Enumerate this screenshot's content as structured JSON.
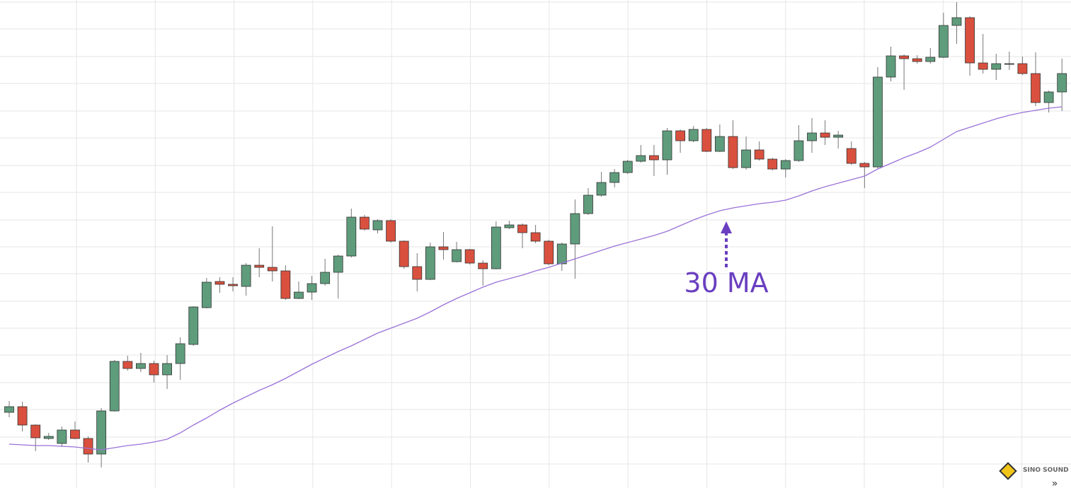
{
  "chart_data": {
    "type": "candlestick",
    "categories": [
      null,
      null,
      null,
      null,
      null,
      null,
      null,
      null,
      null,
      null,
      null,
      null,
      null,
      null,
      null,
      null,
      null,
      null,
      null,
      null,
      null,
      null,
      null,
      null,
      null,
      null,
      null,
      null,
      null,
      null,
      null,
      null,
      null,
      null,
      null,
      null,
      null,
      null,
      null,
      null,
      null,
      null,
      null,
      null,
      null,
      null,
      null,
      null,
      null,
      null,
      null,
      null,
      null,
      null,
      null,
      null,
      null,
      null,
      null,
      null,
      null,
      null,
      null,
      null,
      null,
      null,
      null,
      null,
      null,
      null,
      null,
      null,
      null,
      null,
      null,
      null,
      null,
      null,
      null,
      null,
      null
    ],
    "open": [
      107,
      115,
      89,
      70,
      63,
      82,
      70,
      48,
      109,
      179,
      169,
      176,
      160,
      176,
      203,
      255,
      292,
      288,
      285,
      315,
      312,
      307,
      268,
      277,
      289,
      305,
      328,
      383,
      365,
      378,
      349,
      313,
      295,
      341,
      320,
      337,
      318,
      310,
      368,
      372,
      361,
      349,
      317,
      345,
      388,
      414,
      432,
      446,
      462,
      470,
      464,
      505,
      491,
      507,
      476,
      497,
      453,
      478,
      465,
      451,
      463,
      491,
      502,
      496,
      480,
      459,
      454,
      581,
      611,
      607,
      603,
      609,
      654,
      665,
      601,
      592,
      599,
      600,
      586,
      545,
      560
    ],
    "high": [
      123,
      122,
      90,
      78,
      87,
      94,
      73,
      113,
      181,
      187,
      191,
      180,
      188,
      213,
      257,
      297,
      298,
      298,
      318,
      339,
      370,
      315,
      292,
      300,
      324,
      330,
      395,
      386,
      380,
      380,
      350,
      332,
      347,
      362,
      348,
      338,
      322,
      377,
      378,
      374,
      372,
      351,
      347,
      408,
      424,
      447,
      451,
      464,
      485,
      485,
      509,
      507,
      512,
      509,
      514,
      520,
      497,
      490,
      467,
      465,
      513,
      523,
      520,
      505,
      490,
      461,
      595,
      624,
      613,
      612,
      622,
      672,
      687,
      667,
      642,
      614,
      617,
      610,
      616,
      562,
      607
    ],
    "low": [
      100,
      80,
      52,
      68,
      58,
      69,
      36,
      29,
      108,
      166,
      164,
      149,
      140,
      153,
      201,
      254,
      276,
      278,
      272,
      298,
      292,
      266,
      267,
      266,
      286,
      268,
      326,
      364,
      360,
      347,
      310,
      278,
      294,
      323,
      319,
      316,
      286,
      309,
      366,
      339,
      346,
      315,
      307,
      296,
      386,
      412,
      425,
      444,
      460,
      441,
      443,
      474,
      489,
      475,
      475,
      451,
      450,
      463,
      449,
      439,
      461,
      474,
      485,
      480,
      457,
      424,
      452,
      575,
      563,
      600,
      600,
      608,
      628,
      583,
      586,
      577,
      591,
      584,
      540,
      531,
      533
    ],
    "close": [
      115,
      89,
      71,
      73,
      82,
      70,
      48,
      109,
      179,
      169,
      176,
      160,
      176,
      204,
      256,
      291,
      288,
      286,
      315,
      312,
      307,
      268,
      277,
      289,
      305,
      328,
      383,
      366,
      378,
      349,
      313,
      295,
      341,
      337,
      337,
      318,
      310,
      369,
      372,
      361,
      349,
      317,
      345,
      388,
      414,
      432,
      446,
      462,
      470,
      464,
      505,
      491,
      507,
      476,
      497,
      453,
      478,
      465,
      451,
      463,
      491,
      502,
      496,
      499,
      459,
      454,
      581,
      611,
      607,
      603,
      609,
      654,
      665,
      601,
      592,
      600,
      600,
      586,
      545,
      560,
      586
    ],
    "up_color": "#5e9c7c",
    "down_color": "#d9503f",
    "ma": {
      "color": "#9b72d8",
      "values": [
        62,
        61,
        60,
        60,
        59,
        58,
        56,
        54,
        57,
        60,
        62,
        65,
        69,
        78,
        89,
        99,
        110,
        120,
        129,
        138,
        146,
        155,
        165,
        175,
        184,
        193,
        201,
        210,
        219,
        226,
        233,
        240,
        249,
        259,
        268,
        276,
        284,
        291,
        296,
        301,
        307,
        312,
        318,
        324,
        330,
        336,
        342,
        347,
        352,
        357,
        363,
        371,
        379,
        386,
        392,
        396,
        399,
        402,
        404,
        407,
        413,
        420,
        426,
        431,
        436,
        441,
        451,
        459,
        467,
        474,
        482,
        493,
        504,
        510,
        516,
        522,
        527,
        531,
        534,
        537,
        539
      ]
    },
    "annotation": "30 MA",
    "watermark": "SINO SOUND",
    "ylim": [
      0,
      690
    ],
    "yticks": [
      687,
      649,
      610,
      572,
      533,
      495,
      456,
      418,
      379,
      341,
      303,
      264,
      226,
      188,
      149,
      111,
      72,
      34
    ],
    "grid": true
  }
}
